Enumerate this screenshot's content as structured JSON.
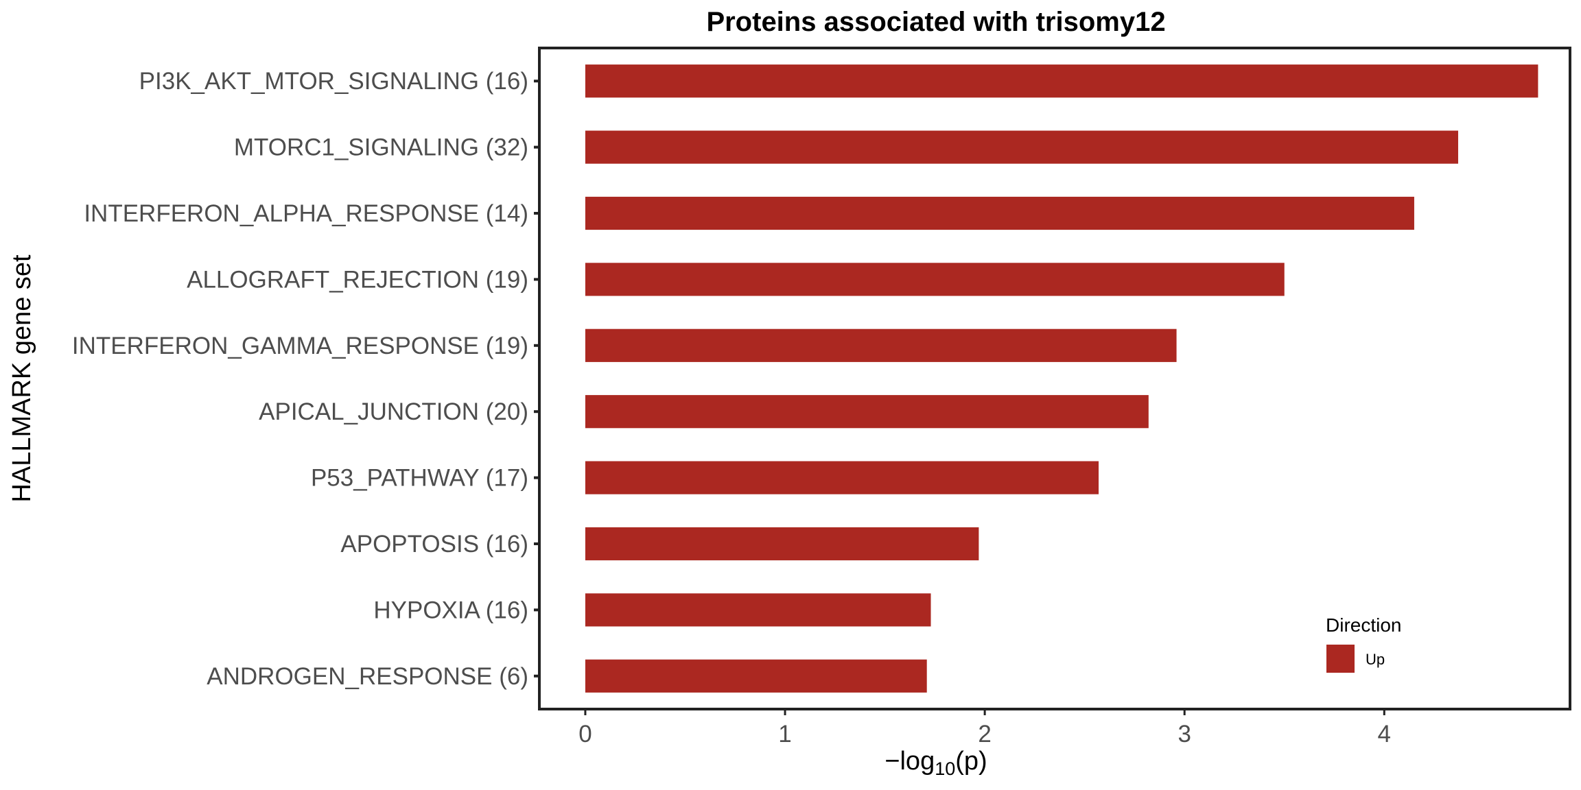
{
  "chart_data": {
    "type": "bar",
    "orientation": "horizontal",
    "title": "Proteins associated with trisomy12",
    "xlabel_prefix": "−log",
    "xlabel_sub": "10",
    "xlabel_suffix": "(p)",
    "ylabel": "HALLMARK gene set",
    "xlim": [
      -0.23,
      4.93
    ],
    "xticks": [
      0,
      1,
      2,
      3,
      4
    ],
    "grid": false,
    "categories": [
      "PI3K_AKT_MTOR_SIGNALING (16)",
      "MTORC1_SIGNALING (32)",
      "INTERFERON_ALPHA_RESPONSE (14)",
      "ALLOGRAFT_REJECTION (19)",
      "INTERFERON_GAMMA_RESPONSE (19)",
      "APICAL_JUNCTION (20)",
      "P53_PATHWAY (17)",
      "APOPTOSIS (16)",
      "HYPOXIA (16)",
      "ANDROGEN_RESPONSE (6)"
    ],
    "series": [
      {
        "name": "Up",
        "color": "#ab2821",
        "values": [
          4.77,
          4.37,
          4.15,
          3.5,
          2.96,
          2.82,
          2.57,
          1.97,
          1.73,
          1.71
        ]
      }
    ],
    "legend": {
      "title": "Direction",
      "position": "bottom-right"
    }
  }
}
